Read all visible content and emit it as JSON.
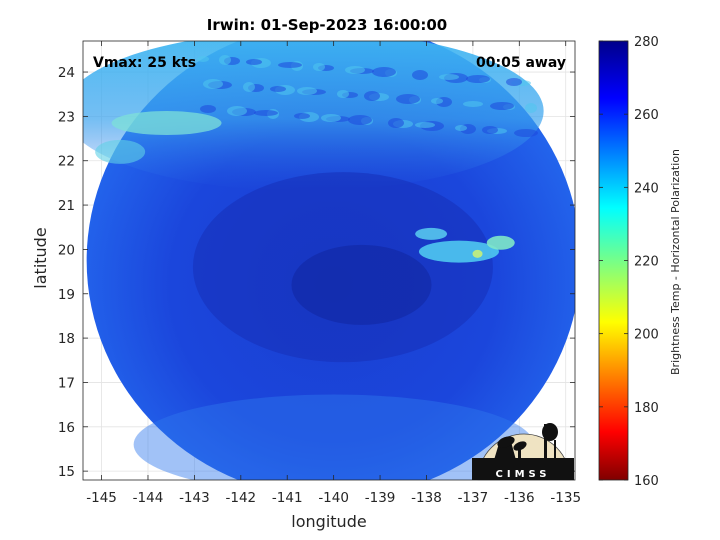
{
  "chart_data": {
    "type": "heatmap",
    "title": "Irwin: 01-Sep-2023 16:00:00",
    "xlabel": "longitude",
    "ylabel": "latitude",
    "xlim": [
      -145.4,
      -134.8
    ],
    "ylim": [
      14.8,
      24.7
    ],
    "xticks": [
      -145,
      -144,
      -143,
      -142,
      -141,
      -140,
      -139,
      -138,
      -137,
      -136,
      -135
    ],
    "yticks": [
      15,
      16,
      17,
      18,
      19,
      20,
      21,
      22,
      23,
      24
    ],
    "grid": true,
    "annotations": {
      "left": "Vmax: 25 kts",
      "right": "00:05 away"
    },
    "colorbar": {
      "label": "Brightness Temp - Horizontal Polarization",
      "range": [
        160,
        280
      ],
      "ticks": [
        160,
        180,
        200,
        220,
        240,
        260,
        280
      ],
      "colormap": "jet"
    },
    "logo_text": "CIMSS",
    "footprint_center": [
      -140.0,
      19.75
    ],
    "values_description_points": [
      {
        "lon": -141,
        "lat": 24,
        "tb": 240
      },
      {
        "lon": -143.5,
        "lat": 22.8,
        "tb": 225
      },
      {
        "lon": -140,
        "lat": 19.5,
        "tb": 268
      },
      {
        "lon": -137.5,
        "lat": 19.9,
        "tb": 240
      },
      {
        "lon": -136.5,
        "lat": 20.1,
        "tb": 222
      }
    ]
  }
}
